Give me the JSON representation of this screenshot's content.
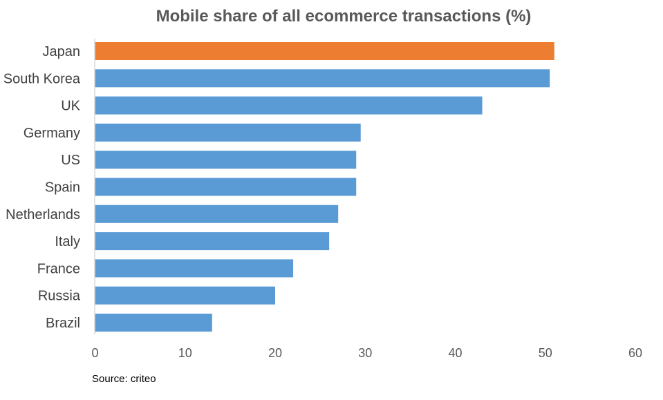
{
  "chart_data": {
    "type": "bar",
    "orientation": "horizontal",
    "title": "Mobile share of all ecommerce transactions (%)",
    "categories": [
      "Japan",
      "South Korea",
      "UK",
      "Germany",
      "US",
      "Spain",
      "Netherlands",
      "Italy",
      "France",
      "Russia",
      "Brazil"
    ],
    "values": [
      51,
      50.5,
      43,
      29.5,
      29,
      29,
      27,
      26,
      22,
      20,
      13
    ],
    "highlight_index": 0,
    "colors": {
      "default": "#5b9bd5",
      "highlight": "#ed7d31",
      "axis": "#d9d9d9"
    },
    "xlim": [
      0,
      60
    ],
    "xticks": [
      0,
      10,
      20,
      30,
      40,
      50,
      60
    ],
    "grid": false,
    "legend": "none",
    "source": "Source: criteo"
  }
}
